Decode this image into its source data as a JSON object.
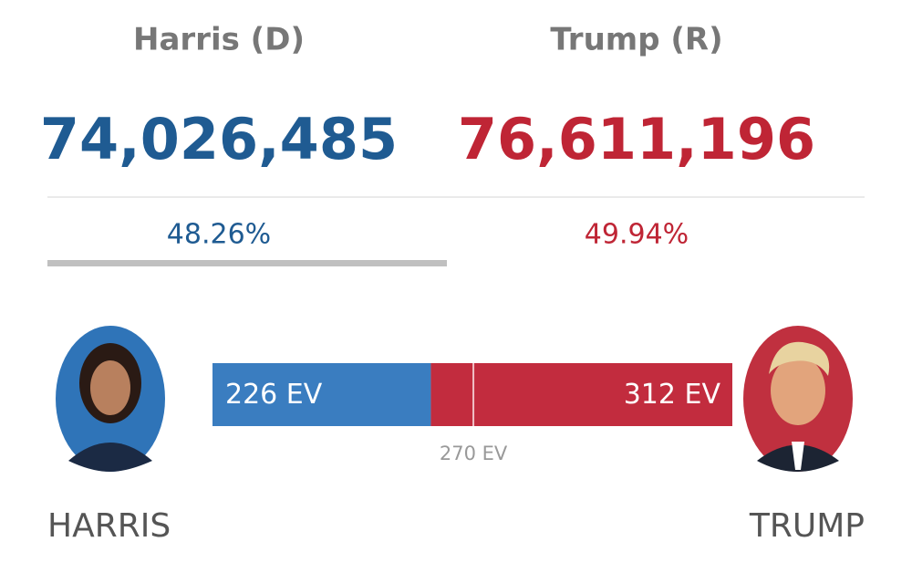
{
  "candidates": [
    {
      "party_name": "Harris (D)",
      "votes": "74,026,485",
      "percent": "48.26%",
      "ev": 226,
      "ev_label": "226 EV",
      "label": "HARRIS",
      "color": "#3a7dc0",
      "text_color": "#1f5b92"
    },
    {
      "party_name": "Trump (R)",
      "votes": "76,611,196",
      "percent": "49.94%",
      "ev": 312,
      "ev_label": "312 EV",
      "label": "TRUMP",
      "color": "#c22c3e",
      "text_color": "#bf2535"
    }
  ],
  "threshold": {
    "value": 270,
    "label": "270 EV"
  }
}
